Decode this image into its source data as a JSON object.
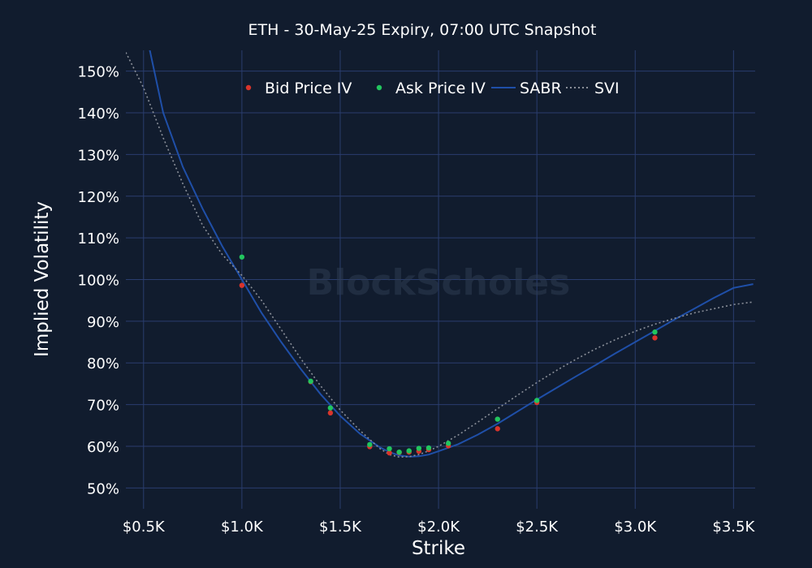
{
  "chart_data": {
    "type": "scatter",
    "title": "ETH - 30-May-25 Expiry, 07:00 UTC Snapshot",
    "xlabel": "Strike",
    "ylabel": "Implied Volatility",
    "watermark": "BlockScholes",
    "xlim": [
      410,
      3610
    ],
    "ylim": [
      45,
      155
    ],
    "xticks": [
      500,
      1000,
      1500,
      2000,
      2500,
      3000,
      3500
    ],
    "xtick_labels": [
      "$0.5K",
      "$1.0K",
      "$1.5K",
      "$2.0K",
      "$2.5K",
      "$3.0K",
      "$3.5K"
    ],
    "yticks": [
      50,
      60,
      70,
      80,
      90,
      100,
      110,
      120,
      130,
      140,
      150
    ],
    "ytick_labels": [
      "50%",
      "60%",
      "70%",
      "80%",
      "90%",
      "100%",
      "110%",
      "120%",
      "130%",
      "140%",
      "150%"
    ],
    "legend_position": "top-center",
    "colors": {
      "background": "#111c2e",
      "grid": "#2a3d6e",
      "bid": "#d9342b",
      "ask": "#22c55e",
      "sabr": "#1f4fa8",
      "svi": "#8a8f99"
    },
    "series": [
      {
        "name": "Bid Price IV",
        "kind": "markers",
        "color": "#d9342b",
        "x": [
          1000,
          1350,
          1450,
          1650,
          1750,
          1800,
          1850,
          1900,
          1950,
          2050,
          2300,
          2500,
          3100
        ],
        "y": [
          98.6,
          75.5,
          68.0,
          59.9,
          58.4,
          58.5,
          58.6,
          58.8,
          59.2,
          60.1,
          64.2,
          70.5,
          86.0
        ]
      },
      {
        "name": "Ask Price IV",
        "kind": "markers",
        "color": "#22c55e",
        "x": [
          1000,
          1350,
          1450,
          1650,
          1750,
          1800,
          1850,
          1900,
          1950,
          2050,
          2300,
          2500,
          3100
        ],
        "y": [
          105.4,
          75.6,
          69.2,
          60.4,
          59.4,
          58.6,
          58.9,
          59.5,
          59.6,
          60.7,
          66.5,
          71.0,
          87.4
        ]
      },
      {
        "name": "SABR",
        "kind": "line",
        "color": "#1f4fa8",
        "x": [
          500,
          600,
          700,
          800,
          900,
          1000,
          1100,
          1200,
          1300,
          1400,
          1500,
          1600,
          1700,
          1750,
          1800,
          1850,
          1900,
          1950,
          2000,
          2100,
          2200,
          2300,
          2400,
          2500,
          2600,
          2700,
          2800,
          2900,
          3000,
          3100,
          3200,
          3300,
          3400,
          3500,
          3600
        ],
        "y": [
          162,
          140,
          127,
          117,
          108,
          100,
          92,
          85,
          78.5,
          72.5,
          67.3,
          63.0,
          59.8,
          58.6,
          57.8,
          57.5,
          57.6,
          58.0,
          58.8,
          60.5,
          62.8,
          65.4,
          68.3,
          71.2,
          74.0,
          76.8,
          79.5,
          82.3,
          85.0,
          87.7,
          90.4,
          93.0,
          95.6,
          98.0,
          98.9
        ]
      },
      {
        "name": "SVI",
        "kind": "dotted-line",
        "color": "#8a8f99",
        "x": [
          410,
          500,
          600,
          700,
          800,
          900,
          1000,
          1100,
          1200,
          1300,
          1400,
          1500,
          1600,
          1700,
          1750,
          1800,
          1850,
          1900,
          1950,
          2000,
          2100,
          2200,
          2300,
          2400,
          2500,
          2600,
          2700,
          2800,
          2900,
          3000,
          3100,
          3200,
          3300,
          3400,
          3500,
          3600
        ],
        "y": [
          154.5,
          146,
          134,
          123,
          113,
          106,
          101,
          95,
          88,
          81,
          74.5,
          68.7,
          63.8,
          59.5,
          58.0,
          57.4,
          57.5,
          58.0,
          58.9,
          60.0,
          62.7,
          65.8,
          69.0,
          72.2,
          75.3,
          78.2,
          80.9,
          83.4,
          85.6,
          87.6,
          89.3,
          90.7,
          92.0,
          93.0,
          94.0,
          94.6
        ]
      }
    ]
  }
}
